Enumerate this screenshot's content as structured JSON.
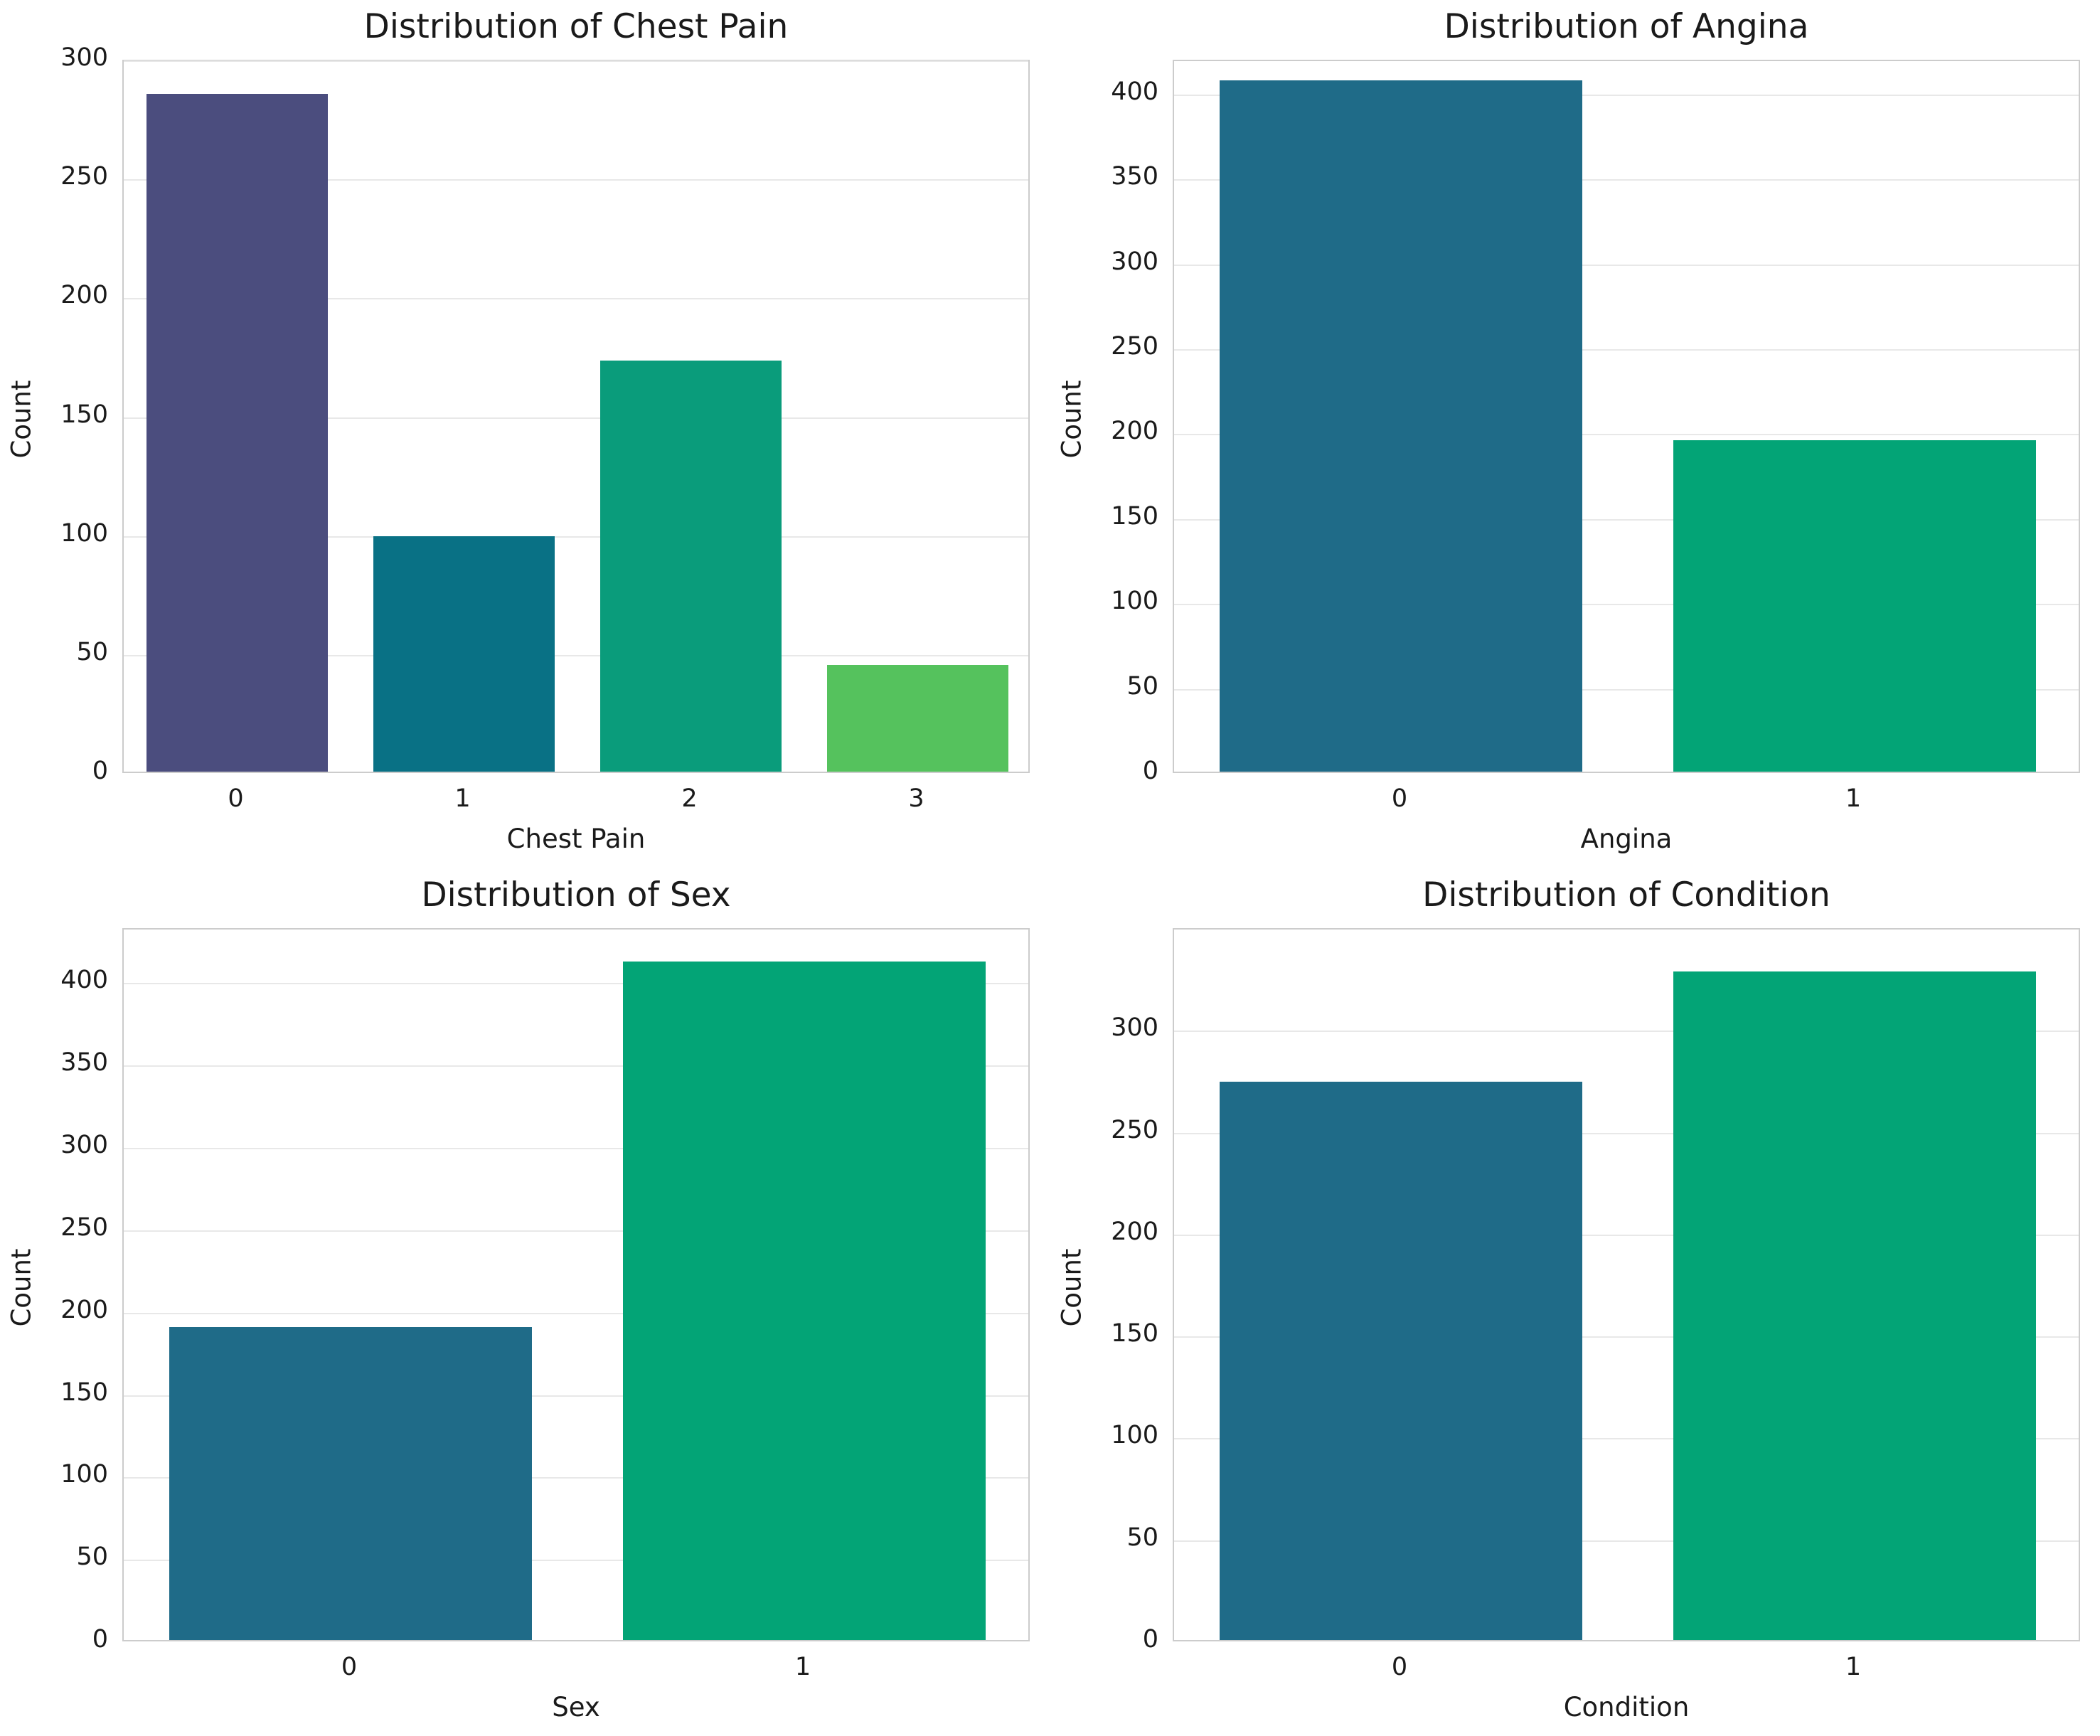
{
  "figure": {
    "background": "#ffffff",
    "text_color": "#1a1a1a",
    "grid_color": "#e8e8e8",
    "spine_color": "#cccccc",
    "palette_four": [
      "#4b4d7e",
      "#097185",
      "#0a9c7b",
      "#55c25d"
    ],
    "palette_two": [
      "#1f6b88",
      "#03a476"
    ]
  },
  "chart_data": [
    {
      "type": "bar",
      "title": "Distribution of Chest Pain",
      "xlabel": "Chest Pain",
      "ylabel": "Count",
      "categories": [
        "0",
        "1",
        "2",
        "3"
      ],
      "values": [
        285,
        99,
        173,
        45
      ],
      "colors": [
        "#4b4d7e",
        "#097185",
        "#0a9c7b",
        "#55c25d"
      ],
      "yticks": [
        0,
        50,
        100,
        150,
        200,
        250,
        300
      ],
      "ylim": [
        0,
        300
      ],
      "grid": "horizontal",
      "legend": "none"
    },
    {
      "type": "bar",
      "title": "Distribution of Angina",
      "xlabel": "Angina",
      "ylabel": "Count",
      "categories": [
        "0",
        "1"
      ],
      "values": [
        407,
        195
      ],
      "colors": [
        "#1f6b88",
        "#03a476"
      ],
      "yticks": [
        0,
        50,
        100,
        150,
        200,
        250,
        300,
        350,
        400
      ],
      "ylim": [
        0,
        420
      ],
      "grid": "horizontal",
      "legend": "none"
    },
    {
      "type": "bar",
      "title": "Distribution of Sex",
      "xlabel": "Sex",
      "ylabel": "Count",
      "categories": [
        "0",
        "1"
      ],
      "values": [
        190,
        412
      ],
      "colors": [
        "#1f6b88",
        "#03a476"
      ],
      "yticks": [
        0,
        50,
        100,
        150,
        200,
        250,
        300,
        350,
        400
      ],
      "ylim": [
        0,
        433
      ],
      "grid": "horizontal",
      "legend": "none"
    },
    {
      "type": "bar",
      "title": "Distribution of Condition",
      "xlabel": "Condition",
      "ylabel": "Count",
      "categories": [
        "0",
        "1"
      ],
      "values": [
        274,
        328
      ],
      "colors": [
        "#1f6b88",
        "#03a476"
      ],
      "yticks": [
        0,
        50,
        100,
        150,
        200,
        250,
        300
      ],
      "ylim": [
        0,
        350
      ],
      "grid": "horizontal",
      "legend": "none"
    }
  ]
}
